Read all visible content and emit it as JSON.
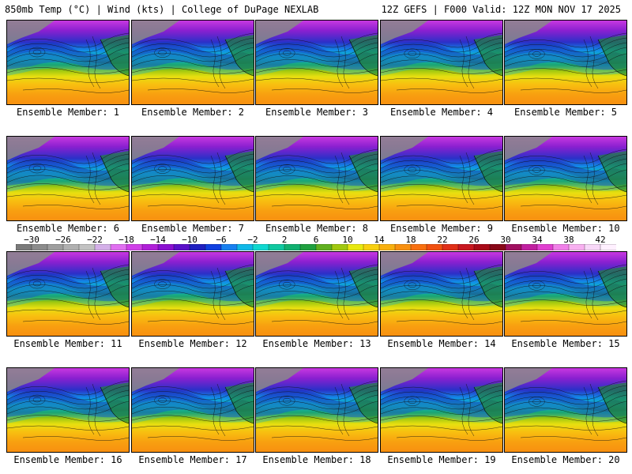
{
  "header": {
    "left_title": "850mb Temp (°C) | Wind (kts) | College of DuPage NEXLAB",
    "right_title": "12Z GEFS | F000 Valid: 12Z MON NOV 17 2025"
  },
  "panels": [
    {
      "label": "Ensemble Member: 1"
    },
    {
      "label": "Ensemble Member: 2"
    },
    {
      "label": "Ensemble Member: 3"
    },
    {
      "label": "Ensemble Member: 4"
    },
    {
      "label": "Ensemble Member: 5"
    },
    {
      "label": "Ensemble Member: 6"
    },
    {
      "label": "Ensemble Member: 7"
    },
    {
      "label": "Ensemble Member: 8"
    },
    {
      "label": "Ensemble Member: 9"
    },
    {
      "label": "Ensemble Member: 10"
    },
    {
      "label": "Ensemble Member: 11"
    },
    {
      "label": "Ensemble Member: 12"
    },
    {
      "label": "Ensemble Member: 13"
    },
    {
      "label": "Ensemble Member: 14"
    },
    {
      "label": "Ensemble Member: 15"
    },
    {
      "label": "Ensemble Member: 16"
    },
    {
      "label": "Ensemble Member: 17"
    },
    {
      "label": "Ensemble Member: 18"
    },
    {
      "label": "Ensemble Member: 19"
    },
    {
      "label": "Ensemble Member: 20"
    }
  ],
  "colorbar": {
    "ticks": [
      "-30",
      "-26",
      "-22",
      "-18",
      "-14",
      "-10",
      "-6",
      "-2",
      "2",
      "6",
      "10",
      "14",
      "18",
      "22",
      "26",
      "30",
      "34",
      "38",
      "42"
    ],
    "min": -32,
    "max": 44,
    "step": 2,
    "colors": [
      "#7a7a7a",
      "#8c8c8c",
      "#9e9e9e",
      "#b0b0b0",
      "#c2c2c2",
      "#d4b0e8",
      "#e070f0",
      "#d040e8",
      "#b020d8",
      "#8a10d0",
      "#5a10c8",
      "#2020c0",
      "#1040e0",
      "#1880f0",
      "#10b8e8",
      "#10d8d0",
      "#10c8a0",
      "#10b070",
      "#20a040",
      "#60b020",
      "#a0c810",
      "#e8e810",
      "#f8d010",
      "#f8b010",
      "#f89010",
      "#f87010",
      "#f05010",
      "#e03018",
      "#c81820",
      "#a80a18",
      "#880818",
      "#a01060",
      "#c020a0",
      "#e040d0",
      "#f080e8",
      "#f8b0f0",
      "#f8d8f8",
      "#fff0ff"
    ]
  }
}
